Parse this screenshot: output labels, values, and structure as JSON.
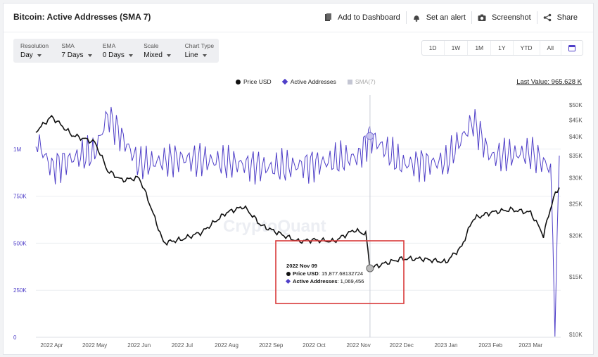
{
  "header": {
    "title": "Bitcoin: Active Addresses (SMA 7)",
    "actions": {
      "add_dashboard": "Add to Dashboard",
      "set_alert": "Set an alert",
      "screenshot": "Screenshot",
      "share": "Share"
    }
  },
  "controls": [
    {
      "label": "Resolution",
      "value": "Day"
    },
    {
      "label": "SMA",
      "value": "7 Days"
    },
    {
      "label": "EMA",
      "value": "0 Days"
    },
    {
      "label": "Scale",
      "value": "Mixed"
    },
    {
      "label": "Chart Type",
      "value": "Line"
    }
  ],
  "ranges": [
    "1D",
    "1W",
    "1M",
    "1Y",
    "YTD",
    "All"
  ],
  "legend": {
    "price": "Price USD",
    "active": "Active Addresses",
    "sma": "SMA(7)"
  },
  "last_value": "Last Value: 965.628 K",
  "watermark": "CryptoQuant",
  "tooltip": {
    "date": "2022 Nov 09",
    "price_label": "Price USD",
    "price_value": ": 15,877.68132724",
    "active_label": "Active Addresses",
    "active_value": ": 1,069,456"
  },
  "colors": {
    "active": "#4f3fc8",
    "price": "#111111",
    "highlight_box": "#d93a3a"
  },
  "chart_data": {
    "type": "line",
    "x_ticks": [
      "2022 Apr",
      "2022 May",
      "2022 Jun",
      "2022 Jul",
      "2022 Aug",
      "2022 Sep",
      "2022 Oct",
      "2022 Nov",
      "2022 Dec",
      "2023 Jan",
      "2023 Feb",
      "2023 Mar"
    ],
    "y_left_ticks": [
      "0",
      "250K",
      "500K",
      "750K",
      "1M"
    ],
    "y_right_ticks": [
      "$10K",
      "$15K",
      "$20K",
      "$25K",
      "$30K",
      "$35K",
      "$40K",
      "$45K",
      "$50K"
    ],
    "ylim_left": [
      0,
      1250000
    ],
    "series": [
      {
        "name": "Price USD",
        "axis": "right",
        "x": [
          "2022-03-21",
          "2022-04-01",
          "2022-04-15",
          "2022-05-01",
          "2022-05-10",
          "2022-05-20",
          "2022-06-01",
          "2022-06-12",
          "2022-06-18",
          "2022-07-01",
          "2022-07-15",
          "2022-08-01",
          "2022-08-13",
          "2022-08-25",
          "2022-09-10",
          "2022-09-20",
          "2022-10-01",
          "2022-10-15",
          "2022-10-29",
          "2022-11-06",
          "2022-11-09",
          "2022-11-20",
          "2022-12-01",
          "2022-12-15",
          "2023-01-01",
          "2023-01-12",
          "2023-01-20",
          "2023-02-01",
          "2023-02-15",
          "2023-03-01",
          "2023-03-10",
          "2023-03-17",
          "2023-03-21"
        ],
        "values": [
          41500,
          46000,
          40500,
          38500,
          31500,
          29500,
          30000,
          22500,
          19000,
          19500,
          20500,
          23500,
          24500,
          21500,
          20000,
          19200,
          19400,
          19200,
          20800,
          20200,
          15900,
          16500,
          17000,
          17000,
          16600,
          18500,
          22500,
          23500,
          24000,
          23500,
          20000,
          26000,
          28000
        ]
      },
      {
        "name": "Active Addresses",
        "axis": "left",
        "x": [
          "2022-03-21",
          "2022-04-01",
          "2022-04-15",
          "2022-05-01",
          "2022-05-10",
          "2022-06-01",
          "2022-07-01",
          "2022-08-01",
          "2022-09-01",
          "2022-10-01",
          "2022-11-01",
          "2022-11-09",
          "2022-12-01",
          "2023-01-01",
          "2023-01-20",
          "2023-02-01",
          "2023-03-01",
          "2023-03-15",
          "2023-03-18",
          "2023-03-21"
        ],
        "values": [
          1050000,
          900000,
          950000,
          980000,
          1180000,
          920000,
          950000,
          930000,
          900000,
          920000,
          960000,
          1069456,
          920000,
          930000,
          1150000,
          960000,
          980000,
          900000,
          80000,
          965628
        ]
      }
    ],
    "highlight": {
      "x": "2022-11-09"
    }
  }
}
